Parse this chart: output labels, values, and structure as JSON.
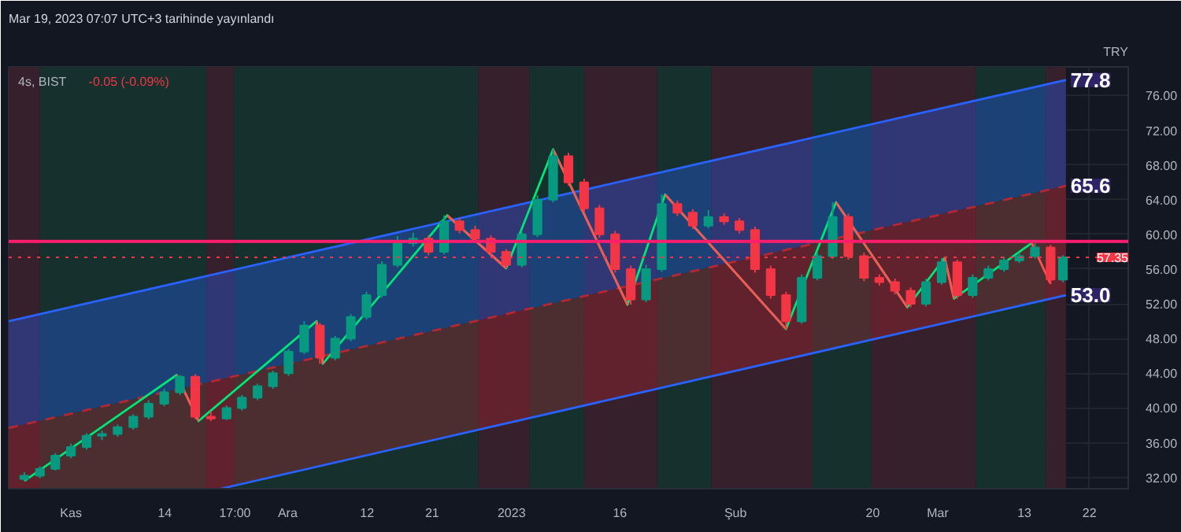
{
  "chart_data": {
    "type": "candlestick",
    "title": "Mar 19, 2023 07:07 UTC+3 tarihinde yayınlandı",
    "subtitle": "4s, BIST",
    "ylabel": "TRY",
    "annotations": [
      "-0.05 (-0.09%)",
      {
        "text": "77.8",
        "x": "2023-03-18T18:00",
        "y": 77.8
      },
      {
        "text": "65.6",
        "x": "2023-03-18T18:00",
        "y": 65.6
      },
      {
        "text": "53.0",
        "x": "2023-03-18T18:00",
        "y": 53.0
      }
    ],
    "x": [
      "2022-10-25T13:00",
      "2022-10-27T17:00",
      "2022-10-29T20:00",
      "2022-11-01T00:00",
      "2022-11-03T04:00",
      "2022-11-05T07:00",
      "2022-11-07T11:00",
      "2022-11-09T15:00",
      "2022-11-11T18:00",
      "2022-11-13T22:00",
      "2022-11-16T02:00",
      "2022-11-18T05:00",
      "2022-11-20T09:00",
      "2022-11-22T13:00",
      "2022-11-24T16:00",
      "2022-11-26T20:00",
      "2022-11-28T23:00",
      "2022-12-01T03:00",
      "2022-12-03T07:00",
      "2022-12-05T11:00",
      "2022-12-07T14:00",
      "2022-12-09T18:00",
      "2022-12-11T22:00",
      "2022-12-14T01:00",
      "2022-12-16T05:00",
      "2022-12-18T09:00",
      "2022-12-20T12:00",
      "2022-12-22T16:00",
      "2022-12-24T19:00",
      "2022-12-26T23:00",
      "2022-12-29T03:00",
      "2022-12-31T06:00",
      "2023-01-02T10:00",
      "2023-01-04T14:00",
      "2023-01-06T18:00",
      "2023-01-08T21:00",
      "2023-01-11T01:00",
      "2023-01-13T04:00",
      "2023-01-15T08:00",
      "2023-01-17T12:00",
      "2023-01-19T15:00",
      "2023-01-21T19:00",
      "2023-01-23T23:00",
      "2023-01-26T02:00",
      "2023-01-28T06:00",
      "2023-01-30T10:00",
      "2023-02-01T13:00",
      "2023-02-03T17:00",
      "2023-02-05T21:00",
      "2023-02-08T00:00",
      "2023-02-10T04:00",
      "2023-02-12T08:00",
      "2023-02-14T11:00",
      "2023-02-16T15:00",
      "2023-02-18T19:00",
      "2023-02-20T22:00",
      "2023-02-23T02:00",
      "2023-02-25T06:00",
      "2023-02-27T09:00",
      "2023-03-01T13:00",
      "2023-03-03T17:00",
      "2023-03-05T20:00",
      "2023-03-08T00:00",
      "2023-03-10T04:00",
      "2023-03-12T07:00",
      "2023-03-14T11:00",
      "2023-03-16T15:00",
      "2023-03-18T08:00"
    ],
    "ohlc": [
      [
        31.8,
        32.6,
        31.6,
        32.2
      ],
      [
        32.2,
        33.3,
        31.9,
        33.0
      ],
      [
        33.0,
        34.8,
        32.8,
        34.5
      ],
      [
        34.5,
        35.9,
        34.2,
        35.5
      ],
      [
        35.5,
        37.1,
        35.2,
        36.8
      ],
      [
        36.8,
        37.4,
        36.3,
        37.0
      ],
      [
        37.0,
        38.1,
        36.7,
        37.8
      ],
      [
        37.8,
        39.3,
        37.5,
        39.0
      ],
      [
        39.0,
        40.9,
        38.7,
        40.5
      ],
      [
        40.5,
        42.2,
        40.2,
        41.8
      ],
      [
        41.8,
        43.8,
        41.5,
        43.6
      ],
      [
        43.6,
        43.9,
        38.7,
        39.0
      ],
      [
        39.0,
        39.6,
        38.5,
        38.8
      ],
      [
        38.8,
        40.3,
        38.6,
        40.0
      ],
      [
        40.0,
        41.5,
        39.7,
        41.2
      ],
      [
        41.2,
        42.8,
        40.9,
        42.5
      ],
      [
        42.5,
        44.3,
        42.2,
        44.0
      ],
      [
        44.0,
        46.8,
        43.7,
        46.5
      ],
      [
        46.5,
        50.0,
        46.2,
        49.5
      ],
      [
        49.5,
        49.8,
        45.1,
        45.8
      ],
      [
        45.8,
        48.3,
        45.5,
        48.0
      ],
      [
        48.0,
        50.8,
        47.7,
        50.5
      ],
      [
        50.5,
        53.4,
        50.2,
        53.0
      ],
      [
        53.0,
        56.9,
        52.7,
        56.5
      ],
      [
        56.5,
        59.8,
        56.2,
        59.0
      ],
      [
        59.0,
        60.2,
        58.6,
        59.5
      ],
      [
        59.5,
        59.9,
        57.6,
        58.0
      ],
      [
        58.0,
        62.2,
        57.7,
        61.5
      ],
      [
        61.5,
        61.9,
        60.1,
        60.5
      ],
      [
        60.5,
        61.0,
        59.1,
        59.5
      ],
      [
        59.5,
        59.9,
        57.6,
        58.0
      ],
      [
        58.0,
        58.3,
        56.1,
        56.5
      ],
      [
        56.5,
        60.4,
        56.2,
        60.0
      ],
      [
        60.0,
        64.5,
        59.7,
        64.0
      ],
      [
        64.0,
        69.8,
        63.7,
        69.0
      ],
      [
        69.0,
        69.4,
        65.6,
        66.0
      ],
      [
        66.0,
        66.4,
        62.6,
        63.0
      ],
      [
        63.0,
        63.4,
        59.6,
        60.0
      ],
      [
        60.0,
        60.4,
        55.6,
        56.0
      ],
      [
        56.0,
        56.4,
        51.9,
        52.5
      ],
      [
        52.5,
        56.5,
        52.2,
        56.0
      ],
      [
        56.0,
        64.6,
        55.7,
        63.5
      ],
      [
        63.5,
        63.9,
        62.1,
        62.5
      ],
      [
        62.5,
        62.9,
        60.6,
        61.0
      ],
      [
        61.0,
        62.8,
        60.7,
        62.0
      ],
      [
        62.0,
        62.4,
        61.1,
        61.5
      ],
      [
        61.5,
        61.9,
        60.1,
        60.5
      ],
      [
        60.5,
        60.9,
        55.6,
        56.0
      ],
      [
        56.0,
        56.4,
        52.6,
        53.0
      ],
      [
        53.0,
        53.4,
        49.1,
        50.0
      ],
      [
        50.0,
        55.4,
        49.7,
        55.0
      ],
      [
        55.0,
        57.9,
        54.7,
        57.5
      ],
      [
        57.5,
        63.7,
        57.2,
        62.0
      ],
      [
        62.0,
        62.4,
        57.1,
        57.5
      ],
      [
        57.5,
        57.9,
        54.6,
        55.0
      ],
      [
        55.0,
        55.4,
        54.1,
        54.5
      ],
      [
        54.5,
        54.9,
        53.1,
        53.5
      ],
      [
        53.5,
        53.9,
        51.6,
        52.0
      ],
      [
        52.0,
        54.9,
        51.7,
        54.5
      ],
      [
        54.5,
        57.3,
        54.2,
        56.8
      ],
      [
        56.8,
        57.1,
        52.6,
        53.0
      ],
      [
        53.0,
        55.4,
        52.7,
        55.0
      ],
      [
        55.0,
        56.4,
        54.7,
        56.0
      ],
      [
        56.0,
        57.4,
        55.7,
        57.0
      ],
      [
        57.0,
        57.9,
        56.7,
        57.5
      ],
      [
        57.5,
        59.0,
        57.2,
        58.5
      ],
      [
        58.5,
        58.8,
        54.3,
        54.8
      ],
      [
        54.8,
        57.6,
        54.5,
        57.35
      ]
    ],
    "colors": [
      "#089981",
      "#089981",
      "#089981",
      "#089981",
      "#089981",
      "#089981",
      "#089981",
      "#089981",
      "#089981",
      "#089981",
      "#089981",
      "#f23645",
      "#f23645",
      "#089981",
      "#089981",
      "#089981",
      "#089981",
      "#089981",
      "#089981",
      "#f23645",
      "#089981",
      "#089981",
      "#089981",
      "#089981",
      "#089981",
      "#089981",
      "#f23645",
      "#089981",
      "#f23645",
      "#f23645",
      "#f23645",
      "#f23645",
      "#089981",
      "#089981",
      "#089981",
      "#f23645",
      "#f23645",
      "#f23645",
      "#f23645",
      "#f23645",
      "#089981",
      "#089981",
      "#f23645",
      "#f23645",
      "#089981",
      "#f23645",
      "#f23645",
      "#f23645",
      "#f23645",
      "#f23645",
      "#089981",
      "#089981",
      "#089981",
      "#f23645",
      "#f23645",
      "#f23645",
      "#f23645",
      "#f23645",
      "#089981",
      "#089981",
      "#f23645",
      "#089981",
      "#089981",
      "#089981",
      "#089981",
      "#089981",
      "#f23645",
      "#089981"
    ],
    "series": [
      {
        "type": "line",
        "color": "#2962ff",
        "x": [
          "2022-10-23T09:00",
          "2023-03-18T18:00"
        ],
        "values": [
          50.0,
          77.8
        ],
        "lower": [
          37.7,
          65.6
        ],
        "upper": [
          50.0,
          77.8
        ]
      },
      {
        "type": "line",
        "color": "#b22833",
        "line_style": "dashed",
        "x": [
          "2022-10-23T09:00",
          "2022-11-21T18:00",
          "2023-03-18T18:00"
        ],
        "values": [
          37.7,
          43.3,
          65.6
        ],
        "lower": [
          30.7,
          30.7,
          53.0
        ],
        "upper": [
          37.7,
          43.3,
          65.6
        ]
      },
      {
        "type": "line",
        "color": "#2962ff",
        "x": [
          "2022-11-21T18:00",
          "2023-03-18T18:00"
        ],
        "values": [
          30.7,
          53.0
        ]
      },
      {
        "type": "line",
        "color": "#00e676",
        "x": [
          "2022-10-25T13:00",
          "2022-11-15T15:00",
          "2022-11-18T16:00",
          "2022-12-05T00:00",
          "2022-12-05T21:00",
          "2022-12-23T02:00",
          "2022-12-31T06:00",
          "2023-01-06T18:00",
          "2023-01-17T01:00",
          "2023-01-22T06:00",
          "2023-02-08T00:00",
          "2023-02-14T22:00",
          "2023-02-24T19:00",
          "2023-03-01T23:00",
          "2023-03-03T06:00",
          "2023-03-14T00:00"
        ],
        "values": [
          31.6,
          43.8,
          38.5,
          50.0,
          45.1,
          62.2,
          56.1,
          69.8,
          51.9,
          64.6,
          49.1,
          63.7,
          51.6,
          57.3,
          52.6,
          59.0
        ]
      },
      {
        "type": "line",
        "color": "#ff5252",
        "x": [
          "2022-11-15T15:00",
          "2022-11-18T16:00"
        ],
        "values": [
          43.8,
          38.5
        ]
      },
      {
        "type": "line",
        "color": "#ff5252",
        "x": [
          "2022-12-05T00:00",
          "2022-12-05T21:00"
        ],
        "values": [
          50.0,
          45.1
        ]
      },
      {
        "type": "line",
        "color": "#ff5252",
        "x": [
          "2022-12-23T02:00",
          "2022-12-31T06:00"
        ],
        "values": [
          62.2,
          56.1
        ]
      },
      {
        "type": "line",
        "color": "#ff5252",
        "x": [
          "2023-01-06T18:00",
          "2023-01-17T01:00"
        ],
        "values": [
          69.8,
          51.9
        ]
      },
      {
        "type": "line",
        "color": "#ff5252",
        "x": [
          "2023-01-22T06:00",
          "2023-02-08T00:00"
        ],
        "values": [
          64.6,
          49.1
        ]
      },
      {
        "type": "line",
        "color": "#ff5252",
        "x": [
          "2023-02-14T22:00",
          "2023-02-24T19:00"
        ],
        "values": [
          63.7,
          51.6
        ]
      },
      {
        "type": "line",
        "color": "#ff5252",
        "x": [
          "2023-03-01T23:00",
          "2023-03-03T06:00"
        ],
        "values": [
          57.3,
          52.6
        ]
      },
      {
        "type": "line",
        "color": "#ff5252",
        "x": [
          "2023-03-14T00:00",
          "2023-03-16T15:00"
        ],
        "values": [
          59.0,
          54.3
        ]
      }
    ],
    "xlim": [
      "2022-10-23T09:00",
      "2023-03-27T09:00"
    ],
    "xticks": [
      {
        "value": "2022-11-01",
        "label": "Kas"
      },
      {
        "value": "2022-11-14",
        "label": "14"
      },
      {
        "value": "2022-11-23T17:00",
        "label": "17:00"
      },
      {
        "value": "2022-12-01",
        "label": "Ara"
      },
      {
        "value": "2022-12-12",
        "label": "12"
      },
      {
        "value": "2022-12-21",
        "label": "21"
      },
      {
        "value": "2023-01-01",
        "label": "2023"
      },
      {
        "value": "2023-01-16",
        "label": "16"
      },
      {
        "value": "2023-02-01",
        "label": "Şub"
      },
      {
        "value": "2023-02-20",
        "label": "20"
      },
      {
        "value": "2023-03-01",
        "label": "Mar"
      },
      {
        "value": "2023-03-13",
        "label": "13"
      },
      {
        "value": "2023-03-22",
        "label": "22"
      }
    ],
    "ylim": [
      30.7,
      79.3
    ],
    "yticks": [
      {
        "value": 32,
        "label": "32.00"
      },
      {
        "value": 36,
        "label": "36.00"
      },
      {
        "value": 40,
        "label": "40.00"
      },
      {
        "value": 44,
        "label": "44.00"
      },
      {
        "value": 48,
        "label": "48.00"
      },
      {
        "value": 52,
        "label": "52.00"
      },
      {
        "value": 56,
        "label": "56.00"
      },
      {
        "value": 60,
        "label": "60.00"
      },
      {
        "value": 64,
        "label": "64.00"
      },
      {
        "value": 68,
        "label": "68.00"
      },
      {
        "value": 72,
        "label": "72.00"
      },
      {
        "value": 76,
        "label": "76.00"
      }
    ],
    "grid": true,
    "ref_lines": [
      {
        "axis": "y",
        "value": 59.2,
        "label": null,
        "color": "#ff1e6e",
        "line_style": "solid"
      },
      {
        "axis": "y",
        "value": 57.35,
        "label": "57.35",
        "color": "#f23645",
        "line_style": "dotted"
      }
    ],
    "bands": [
      {
        "axis": "x",
        "from": "2022-10-23T09:00",
        "to": "2022-10-27T17:00",
        "label": null,
        "color": "#36202b"
      },
      {
        "axis": "x",
        "from": "2022-10-27T17:00",
        "to": "2022-11-19T18:00",
        "label": null,
        "color": "#16302e"
      },
      {
        "axis": "x",
        "from": "2022-11-19T18:00",
        "to": "2022-11-23T14:00",
        "label": null,
        "color": "#36202b"
      },
      {
        "axis": "x",
        "from": "2022-11-23T14:00",
        "to": "2022-12-27T10:00",
        "label": null,
        "color": "#16302e"
      },
      {
        "axis": "x",
        "from": "2022-12-27T10:00",
        "to": "2023-01-03T12:00",
        "label": null,
        "color": "#36202b"
      },
      {
        "axis": "x",
        "from": "2023-01-03T12:00",
        "to": "2023-01-11T01:00",
        "label": null,
        "color": "#16302e"
      },
      {
        "axis": "x",
        "from": "2023-01-11T01:00",
        "to": "2023-01-21T04:00",
        "label": null,
        "color": "#36202b"
      },
      {
        "axis": "x",
        "from": "2023-01-21T04:00",
        "to": "2023-01-28T16:00",
        "label": null,
        "color": "#16302e"
      },
      {
        "axis": "x",
        "from": "2023-01-28T16:00",
        "to": "2023-02-11T16:00",
        "label": null,
        "color": "#36202b"
      },
      {
        "axis": "x",
        "from": "2023-02-11T16:00",
        "to": "2023-02-19T20:00",
        "label": null,
        "color": "#16302e"
      },
      {
        "axis": "x",
        "from": "2023-02-19T20:00",
        "to": "2023-03-06T07:00",
        "label": null,
        "color": "#36202b"
      },
      {
        "axis": "x",
        "from": "2023-03-06T07:00",
        "to": "2023-03-15T23:00",
        "label": null,
        "color": "#16302e"
      },
      {
        "axis": "x",
        "from": "2023-03-15T23:00",
        "to": "2023-03-18T18:00",
        "label": null,
        "color": "#36202b"
      }
    ]
  }
}
